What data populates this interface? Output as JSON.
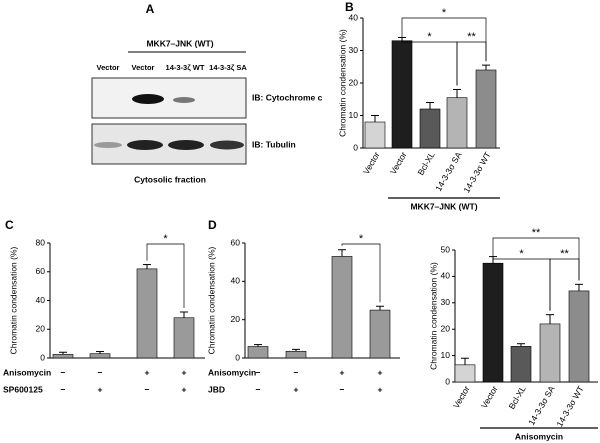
{
  "blot": {
    "panel": "A",
    "group_label": "MKK7–JNK (WT)",
    "lanes": [
      "Vector",
      "Vector",
      "14-3-3ζ WT",
      "14-3-3ζ SA"
    ],
    "rows": [
      "IB: Cytochrome c",
      "IB: Tubulin"
    ],
    "caption": "Cytosolic fraction"
  },
  "chart_data": [
    {
      "type": "bar",
      "panel": "B",
      "y_label": "Chromatin condensation (%)",
      "categories": [
        "Vector",
        "Vector",
        "Bcl-XL",
        "14-3-3σ SA",
        "14-3-3σ WT"
      ],
      "values": [
        8,
        33,
        12,
        15.5,
        24
      ],
      "errors": [
        2,
        1,
        2,
        2.5,
        1.5
      ],
      "colors": [
        "#d4d4d4",
        "#1e1e1e",
        "#595959",
        "#b4b4b4",
        "#8c8c8c"
      ],
      "ylim": [
        0,
        40
      ],
      "yticks": [
        0,
        10,
        20,
        30,
        40
      ],
      "group_label": "MKK7–JNK (WT)",
      "annotations": [
        {
          "from": 1,
          "to": 4,
          "label": "*"
        },
        {
          "from": 1,
          "to": 3,
          "label": "*"
        },
        {
          "from": 3,
          "to": 4,
          "label": "**"
        }
      ]
    },
    {
      "type": "bar",
      "panel": "C",
      "y_label": "Chromatin condensation (%)",
      "values": [
        2.5,
        3,
        62,
        28
      ],
      "errors": [
        1.5,
        1.5,
        3,
        4
      ],
      "color": "#9a9a9a",
      "ylim": [
        0,
        80
      ],
      "yticks": [
        0,
        20,
        40,
        60,
        80
      ],
      "rows": [
        {
          "label": "Anisomycin",
          "signs": [
            "−",
            "−",
            "+",
            "+"
          ]
        },
        {
          "label": "SP600125",
          "signs": [
            "−",
            "+",
            "−",
            "+"
          ]
        }
      ],
      "annotations": [
        {
          "from": 2,
          "to": 3,
          "label": "*"
        }
      ]
    },
    {
      "type": "bar",
      "panel": "D",
      "y_label": "Chromatin condensation (%)",
      "values": [
        6,
        3.5,
        53,
        25
      ],
      "errors": [
        1,
        1,
        3.5,
        2
      ],
      "color": "#9a9a9a",
      "ylim": [
        0,
        60
      ],
      "yticks": [
        0,
        20,
        40,
        60
      ],
      "rows": [
        {
          "label": "Anisomycin",
          "signs": [
            "−",
            "−",
            "+",
            "+"
          ]
        },
        {
          "label": "JBD",
          "signs": [
            "−",
            "+",
            "−",
            "+"
          ]
        }
      ],
      "annotations": [
        {
          "from": 2,
          "to": 3,
          "label": "*"
        }
      ]
    },
    {
      "type": "bar",
      "y_label": "Chromatin condensation (%)",
      "categories": [
        "Vector",
        "Vector",
        "Bcl-XL",
        "14-3-3σ SA",
        "14-3-3σ WT"
      ],
      "values": [
        6.5,
        45,
        13.5,
        22,
        34.5
      ],
      "errors": [
        2.5,
        2.5,
        1,
        3.5,
        2.5
      ],
      "colors": [
        "#d4d4d4",
        "#1e1e1e",
        "#595959",
        "#b4b4b4",
        "#8c8c8c"
      ],
      "ylim": [
        0,
        50
      ],
      "yticks": [
        0,
        10,
        20,
        30,
        40,
        50
      ],
      "group_label": "Anisomycin",
      "annotations": [
        {
          "from": 1,
          "to": 4,
          "label": "**"
        },
        {
          "from": 1,
          "to": 3,
          "label": "*"
        },
        {
          "from": 3,
          "to": 4,
          "label": "**"
        }
      ]
    }
  ]
}
